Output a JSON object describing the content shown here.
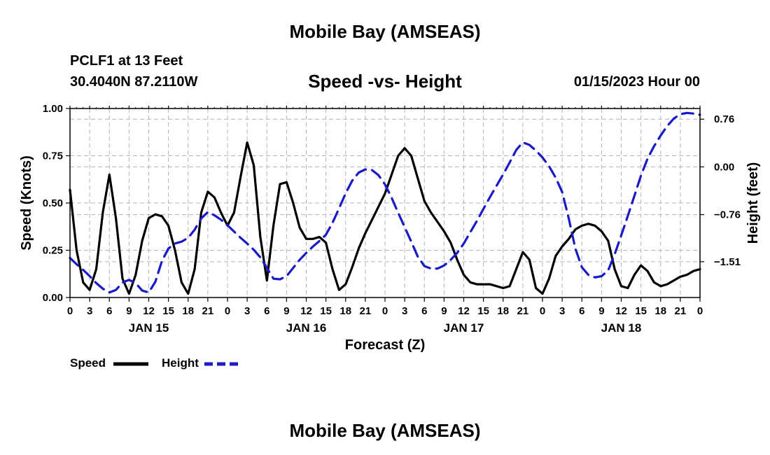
{
  "page": {
    "title": "Mobile Bay (AMSEAS)",
    "footer_title": "Mobile Bay (AMSEAS)",
    "station": "PCLF1 at 13 Feet",
    "coords": "30.4040N  87.2110W",
    "datetime": "01/15/2023 Hour 00"
  },
  "colors": {
    "speed": "#000000",
    "height": "#1a1ac8",
    "grid": "#b4b4b4"
  },
  "chart_data": {
    "type": "line",
    "title": "Speed -vs- Height",
    "xlabel": "Forecast (Z)",
    "ylabel": "Speed (Knots)",
    "ylabel_right": "Height (feet)",
    "x_range": [
      0,
      96
    ],
    "ylim": [
      0,
      1.0
    ],
    "ylim_right": [
      -2.08,
      0.93
    ],
    "y_ticks": [
      0.0,
      0.25,
      0.5,
      0.75,
      1.0
    ],
    "y_tick_labels": [
      "0.00",
      "0.25",
      "0.50",
      "0.75",
      "1.00"
    ],
    "y_right_ticks": [
      -1.51,
      -0.76,
      0.0,
      0.76
    ],
    "y_right_tick_labels": [
      "−1.51",
      "−0.76",
      "0.00",
      "0.76"
    ],
    "x_ticks": [
      0,
      3,
      6,
      9,
      12,
      15,
      18,
      21,
      24,
      27,
      30,
      33,
      36,
      39,
      42,
      45,
      48,
      51,
      54,
      57,
      60,
      63,
      66,
      69,
      72,
      75,
      78,
      81,
      84,
      87,
      90,
      93,
      96
    ],
    "x_tick_labels": [
      "0",
      "3",
      "6",
      "9",
      "12",
      "15",
      "18",
      "21",
      "0",
      "3",
      "6",
      "9",
      "12",
      "15",
      "18",
      "21",
      "0",
      "3",
      "6",
      "9",
      "12",
      "15",
      "18",
      "21",
      "0",
      "3",
      "6",
      "9",
      "12",
      "15",
      "18",
      "21",
      "0"
    ],
    "day_labels": [
      {
        "x": 12,
        "label": "JAN 15"
      },
      {
        "x": 36,
        "label": "JAN 16"
      },
      {
        "x": 60,
        "label": "JAN 17"
      },
      {
        "x": 84,
        "label": "JAN 18"
      }
    ],
    "legend": [
      {
        "name": "Speed",
        "style": "solid"
      },
      {
        "name": "Height",
        "style": "dashed"
      }
    ],
    "series": [
      {
        "name": "Speed",
        "axis": "left",
        "points": [
          [
            0,
            0.57
          ],
          [
            1,
            0.25
          ],
          [
            2,
            0.08
          ],
          [
            3,
            0.04
          ],
          [
            4,
            0.15
          ],
          [
            5,
            0.45
          ],
          [
            6,
            0.65
          ],
          [
            7,
            0.42
          ],
          [
            8,
            0.1
          ],
          [
            9,
            0.02
          ],
          [
            10,
            0.12
          ],
          [
            11,
            0.3
          ],
          [
            12,
            0.42
          ],
          [
            13,
            0.44
          ],
          [
            14,
            0.43
          ],
          [
            15,
            0.38
          ],
          [
            16,
            0.25
          ],
          [
            17,
            0.08
          ],
          [
            18,
            0.02
          ],
          [
            19,
            0.15
          ],
          [
            20,
            0.45
          ],
          [
            21,
            0.56
          ],
          [
            22,
            0.53
          ],
          [
            23,
            0.45
          ],
          [
            24,
            0.38
          ],
          [
            25,
            0.45
          ],
          [
            26,
            0.64
          ],
          [
            27,
            0.82
          ],
          [
            28,
            0.7
          ],
          [
            29,
            0.32
          ],
          [
            30,
            0.09
          ],
          [
            31,
            0.38
          ],
          [
            32,
            0.6
          ],
          [
            33,
            0.61
          ],
          [
            34,
            0.5
          ],
          [
            35,
            0.37
          ],
          [
            36,
            0.31
          ],
          [
            37,
            0.31
          ],
          [
            38,
            0.32
          ],
          [
            39,
            0.29
          ],
          [
            40,
            0.15
          ],
          [
            41,
            0.04
          ],
          [
            42,
            0.07
          ],
          [
            43,
            0.16
          ],
          [
            44,
            0.26
          ],
          [
            45,
            0.34
          ],
          [
            46,
            0.41
          ],
          [
            47,
            0.48
          ],
          [
            48,
            0.55
          ],
          [
            49,
            0.65
          ],
          [
            50,
            0.75
          ],
          [
            51,
            0.79
          ],
          [
            52,
            0.75
          ],
          [
            53,
            0.63
          ],
          [
            54,
            0.51
          ],
          [
            55,
            0.45
          ],
          [
            56,
            0.4
          ],
          [
            57,
            0.35
          ],
          [
            58,
            0.29
          ],
          [
            59,
            0.2
          ],
          [
            60,
            0.12
          ],
          [
            61,
            0.08
          ],
          [
            62,
            0.07
          ],
          [
            63,
            0.07
          ],
          [
            64,
            0.07
          ],
          [
            65,
            0.06
          ],
          [
            66,
            0.05
          ],
          [
            67,
            0.06
          ],
          [
            68,
            0.15
          ],
          [
            69,
            0.24
          ],
          [
            70,
            0.2
          ],
          [
            71,
            0.05
          ],
          [
            72,
            0.02
          ],
          [
            73,
            0.1
          ],
          [
            74,
            0.22
          ],
          [
            75,
            0.27
          ],
          [
            76,
            0.31
          ],
          [
            77,
            0.36
          ],
          [
            78,
            0.38
          ],
          [
            79,
            0.39
          ],
          [
            80,
            0.38
          ],
          [
            81,
            0.35
          ],
          [
            82,
            0.3
          ],
          [
            83,
            0.15
          ],
          [
            84,
            0.06
          ],
          [
            85,
            0.05
          ],
          [
            86,
            0.12
          ],
          [
            87,
            0.17
          ],
          [
            88,
            0.14
          ],
          [
            89,
            0.08
          ],
          [
            90,
            0.06
          ],
          [
            91,
            0.07
          ],
          [
            92,
            0.09
          ],
          [
            93,
            0.11
          ],
          [
            94,
            0.12
          ],
          [
            95,
            0.14
          ],
          [
            96,
            0.15
          ]
        ]
      },
      {
        "name": "Height",
        "axis": "right",
        "points": [
          [
            0,
            -1.45
          ],
          [
            1,
            -1.55
          ],
          [
            2,
            -1.64
          ],
          [
            3,
            -1.74
          ],
          [
            4,
            -1.85
          ],
          [
            5,
            -1.94
          ],
          [
            6,
            -2.0
          ],
          [
            7,
            -1.96
          ],
          [
            8,
            -1.84
          ],
          [
            9,
            -1.8
          ],
          [
            10,
            -1.85
          ],
          [
            11,
            -1.97
          ],
          [
            12,
            -2.0
          ],
          [
            13,
            -1.83
          ],
          [
            14,
            -1.5
          ],
          [
            15,
            -1.3
          ],
          [
            16,
            -1.22
          ],
          [
            17,
            -1.19
          ],
          [
            18,
            -1.13
          ],
          [
            19,
            -1.0
          ],
          [
            20,
            -0.82
          ],
          [
            21,
            -0.72
          ],
          [
            22,
            -0.77
          ],
          [
            23,
            -0.84
          ],
          [
            24,
            -0.93
          ],
          [
            25,
            -1.03
          ],
          [
            26,
            -1.13
          ],
          [
            27,
            -1.22
          ],
          [
            28,
            -1.32
          ],
          [
            29,
            -1.44
          ],
          [
            30,
            -1.61
          ],
          [
            31,
            -1.78
          ],
          [
            32,
            -1.79
          ],
          [
            33,
            -1.74
          ],
          [
            34,
            -1.61
          ],
          [
            35,
            -1.48
          ],
          [
            36,
            -1.37
          ],
          [
            37,
            -1.27
          ],
          [
            38,
            -1.18
          ],
          [
            39,
            -1.08
          ],
          [
            40,
            -0.89
          ],
          [
            41,
            -0.66
          ],
          [
            42,
            -0.42
          ],
          [
            43,
            -0.22
          ],
          [
            44,
            -0.09
          ],
          [
            45,
            -0.04
          ],
          [
            46,
            -0.05
          ],
          [
            47,
            -0.13
          ],
          [
            48,
            -0.28
          ],
          [
            49,
            -0.49
          ],
          [
            50,
            -0.73
          ],
          [
            51,
            -0.96
          ],
          [
            52,
            -1.19
          ],
          [
            53,
            -1.43
          ],
          [
            54,
            -1.58
          ],
          [
            55,
            -1.62
          ],
          [
            56,
            -1.62
          ],
          [
            57,
            -1.57
          ],
          [
            58,
            -1.48
          ],
          [
            59,
            -1.37
          ],
          [
            60,
            -1.22
          ],
          [
            61,
            -1.04
          ],
          [
            62,
            -0.86
          ],
          [
            63,
            -0.67
          ],
          [
            64,
            -0.48
          ],
          [
            65,
            -0.3
          ],
          [
            66,
            -0.12
          ],
          [
            67,
            0.07
          ],
          [
            68,
            0.27
          ],
          [
            69,
            0.39
          ],
          [
            70,
            0.35
          ],
          [
            71,
            0.26
          ],
          [
            72,
            0.15
          ],
          [
            73,
            0.01
          ],
          [
            74,
            -0.17
          ],
          [
            75,
            -0.4
          ],
          [
            76,
            -0.82
          ],
          [
            77,
            -1.3
          ],
          [
            78,
            -1.6
          ],
          [
            79,
            -1.72
          ],
          [
            80,
            -1.76
          ],
          [
            81,
            -1.74
          ],
          [
            82,
            -1.65
          ],
          [
            83,
            -1.39
          ],
          [
            84,
            -1.09
          ],
          [
            85,
            -0.78
          ],
          [
            86,
            -0.46
          ],
          [
            87,
            -0.14
          ],
          [
            88,
            0.13
          ],
          [
            89,
            0.33
          ],
          [
            90,
            0.5
          ],
          [
            91,
            0.65
          ],
          [
            92,
            0.77
          ],
          [
            93,
            0.84
          ],
          [
            94,
            0.86
          ],
          [
            95,
            0.85
          ],
          [
            96,
            0.83
          ]
        ]
      }
    ]
  }
}
